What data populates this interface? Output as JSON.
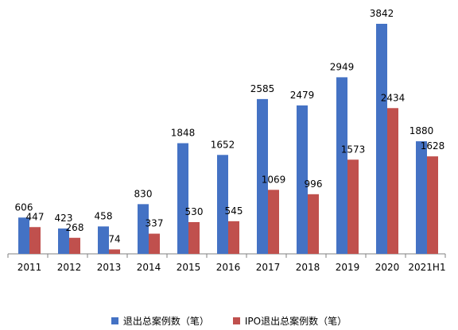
{
  "chart_data": {
    "type": "bar",
    "title": "",
    "xlabel": "",
    "ylabel": "",
    "categories": [
      "2011",
      "2012",
      "2013",
      "2014",
      "2015",
      "2016",
      "2017",
      "2018",
      "2019",
      "2020",
      "2021H1"
    ],
    "series": [
      {
        "name": "退出总案例数（笔）",
        "color": "#4472C4",
        "values": [
          606,
          423,
          458,
          830,
          1848,
          1652,
          2585,
          2479,
          2949,
          3842,
          1880
        ]
      },
      {
        "name": "IPO退出总案例数（笔）",
        "color": "#C0504D",
        "values": [
          447,
          268,
          74,
          337,
          530,
          545,
          1069,
          996,
          1573,
          2434,
          1628
        ]
      }
    ],
    "ylim": [
      0,
      3842
    ],
    "grid": false,
    "legend_position": "bottom"
  }
}
